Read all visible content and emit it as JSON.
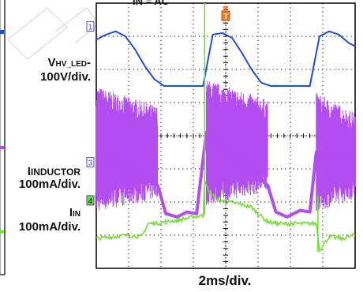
{
  "labels": {
    "vhv_main": "V",
    "vhv_sub": "HV_LED",
    "vhv_dash": "-",
    "vhv_scale": "100V/div.",
    "iind_main": "I",
    "iind_sub": "INDUCTOR",
    "iind_scale": "100mA/div.",
    "iin_main": "I",
    "iin_sub": "IN",
    "iin_scale": "100mA/div.",
    "xscale": "2ms/div.",
    "top_partial": "IN    = AC"
  },
  "markers": {
    "ch1": "1",
    "ch3": "3",
    "ch4": "4",
    "trigger": "T"
  },
  "colors": {
    "vhv": "#1f4fd6",
    "inductor": "#b24df0",
    "iin": "#6ee02a",
    "grid": "#000000",
    "marker_border": "#5b3fd6"
  },
  "chart_data": {
    "type": "line",
    "grid": true,
    "x_divisions": 8,
    "y_divisions": 8,
    "series": [
      {
        "name": "VHV_LED",
        "scale": "100V/div.",
        "x": [
          0.0,
          0.3,
          0.6,
          0.9,
          1.2,
          1.5,
          1.8,
          2.1,
          2.4,
          2.7,
          3.0,
          3.3,
          3.6,
          3.9,
          4.2,
          4.5,
          4.8,
          5.1,
          5.4,
          5.7,
          6.0,
          6.3,
          6.6,
          6.9,
          7.2,
          7.5,
          7.8,
          8.0
        ],
        "y": [
          6.9,
          7.05,
          7.15,
          7.0,
          6.6,
          6.1,
          5.7,
          5.5,
          5.5,
          5.5,
          5.5,
          5.5,
          7.05,
          7.1,
          6.95,
          6.5,
          6.0,
          5.6,
          5.5,
          5.5,
          5.5,
          5.5,
          5.5,
          7.0,
          7.15,
          7.05,
          6.8,
          6.7
        ]
      },
      {
        "name": "INDUCTOR",
        "scale": "100mA/div.",
        "envelope": [
          {
            "x0": 0.0,
            "x1": 1.9,
            "high": 5.2,
            "low": 1.6
          },
          {
            "x0": 3.4,
            "x1": 5.3,
            "high": 5.4,
            "low": 1.8
          },
          {
            "x0": 6.8,
            "x1": 8.0,
            "high": 5.0,
            "low": 1.6
          }
        ],
        "x": [
          0.0,
          1.9,
          2.15,
          2.5,
          2.8,
          3.1,
          3.4,
          5.3,
          5.55,
          5.9,
          6.3,
          6.6,
          6.8,
          8.0
        ],
        "y": [
          3.5,
          2.5,
          1.65,
          1.55,
          1.7,
          1.65,
          4.1,
          2.5,
          1.7,
          1.55,
          1.75,
          1.7,
          3.5,
          3.4
        ]
      },
      {
        "name": "IN",
        "scale": "100mA/div.",
        "x": [
          0.0,
          0.5,
          1.0,
          1.4,
          1.6,
          1.8,
          2.5,
          3.0,
          3.3,
          3.35,
          3.5,
          3.8,
          4.4,
          4.8,
          5.0,
          5.3,
          5.6,
          6.0,
          6.8,
          6.9,
          7.2,
          7.6,
          8.0
        ],
        "y": [
          0.9,
          0.95,
          1.0,
          0.95,
          1.35,
          1.35,
          1.45,
          1.55,
          1.6,
          2.6,
          2.3,
          2.05,
          1.95,
          1.85,
          1.65,
          1.4,
          1.35,
          1.35,
          1.35,
          0.55,
          0.95,
          0.9,
          1.0
        ]
      }
    ]
  }
}
